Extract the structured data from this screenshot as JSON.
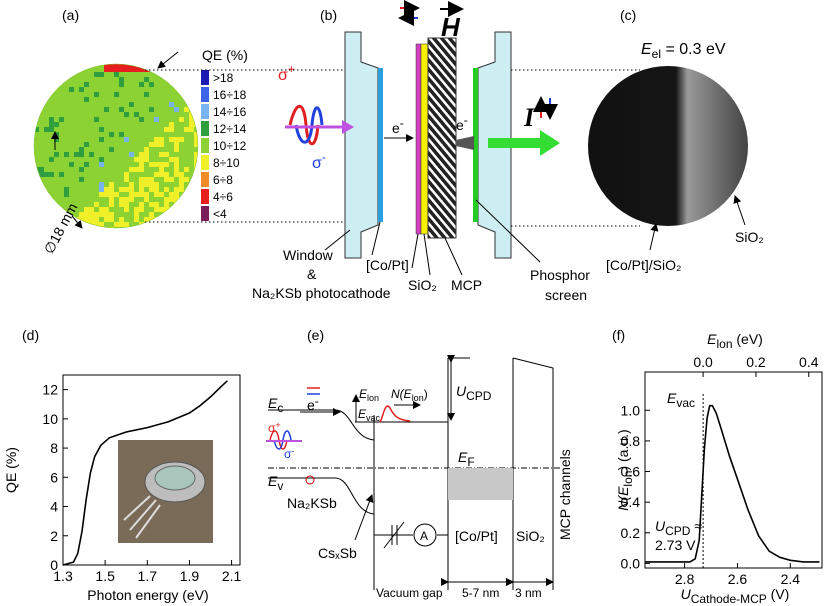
{
  "labels": [
    "(a)",
    "(b)",
    "(c)",
    "(d)",
    "(e)",
    "(f)"
  ],
  "panel_a": {
    "legend_title": "QE (%)",
    "legend": [
      {
        "label": ">18",
        "color": "#1c1cb4"
      },
      {
        "label": "16÷18",
        "color": "#3c64e6"
      },
      {
        "label": "14÷16",
        "color": "#78b4f0"
      },
      {
        "label": "12÷14",
        "color": "#2e9e3e"
      },
      {
        "label": "10÷12",
        "color": "#8cd232"
      },
      {
        "label": "8÷10",
        "color": "#f0f028"
      },
      {
        "label": "6÷8",
        "color": "#f08c28"
      },
      {
        "label": "4÷6",
        "color": "#e61e1e"
      },
      {
        "label": "<4",
        "color": "#7a1e5a"
      }
    ],
    "diameter": "∅18 mm"
  },
  "panel_b": {
    "field": "H",
    "sigma": "σ",
    "plus": "+",
    "minus": "-",
    "electron": "e",
    "current": "I",
    "window": "Window",
    "amp": "&",
    "cathode": "Na₂KSb photocathode",
    "copt": "[Co/Pt]",
    "sio": "SiO₂",
    "mcp": "MCP",
    "phosphor": "Phosphor",
    "screen": "screen"
  },
  "panel_c": {
    "e": "E",
    "e_sub": "el",
    "e_val": " = 0.3 eV",
    "copt_sio": "[Co/Pt]/SiO₂",
    "sio": "SiO₂"
  },
  "panel_e": {
    "E": "E",
    "c": "c",
    "v": "v",
    "vac": "vac",
    "lon": "lon",
    "N": "N(",
    "close": ")",
    "U": "U",
    "cpd": "CPD",
    "F": "F",
    "na": "Na₂KSb",
    "cs": "CsₓSb",
    "gap": "Vacuum gap",
    "d1": "5-7 nm",
    "d2": "3 nm",
    "copt": "[Co/Pt]",
    "sio": "SiO₂",
    "mcp": "MCP channels",
    "amp": "A",
    "e": "e",
    "minus": "-",
    "plus": "+",
    "sigma": "σ"
  },
  "chart_data": [
    {
      "type": "line",
      "xlabel": "Photon energy (eV)",
      "ylabel": "QE (%)",
      "color": "#000000",
      "x": [
        1.3,
        1.35,
        1.37,
        1.39,
        1.41,
        1.43,
        1.45,
        1.48,
        1.52,
        1.6,
        1.7,
        1.8,
        1.9,
        1.95,
        2.0,
        2.05,
        2.08
      ],
      "values": [
        0,
        0.2,
        0.8,
        2.3,
        4.5,
        6.3,
        7.4,
        8.2,
        8.7,
        9.1,
        9.4,
        9.8,
        10.4,
        10.9,
        11.5,
        12.2,
        12.6
      ],
      "xlim": [
        1.3,
        2.14
      ],
      "xticks": [
        1.3,
        1.5,
        1.7,
        1.9,
        2.1
      ],
      "ylim": [
        0,
        13
      ],
      "yticks": [
        0,
        2,
        4,
        6,
        8,
        10,
        12
      ]
    },
    {
      "type": "line",
      "xlabel": {
        "text": "U",
        "sub": "Cathode-MCP",
        "unit": " (V)"
      },
      "ylabel": {
        "text": "N(E",
        "sub": "lon",
        "unit": ") (a.u.)"
      },
      "x2label": {
        "text": "E",
        "sub": "lon",
        "unit": " (eV)"
      },
      "color": "#000000",
      "x": [
        2.95,
        2.85,
        2.78,
        2.76,
        2.745,
        2.735,
        2.725,
        2.715,
        2.705,
        2.695,
        2.68,
        2.66,
        2.63,
        2.6,
        2.56,
        2.52,
        2.48,
        2.44,
        2.4,
        2.35,
        2.29
      ],
      "values": [
        0.01,
        0.01,
        0.01,
        0.03,
        0.15,
        0.45,
        0.75,
        0.95,
        1.03,
        1.03,
        0.98,
        0.87,
        0.7,
        0.55,
        0.35,
        0.18,
        0.08,
        0.04,
        0.02,
        0.01,
        0.01
      ],
      "xlim": [
        2.95,
        2.28
      ],
      "xticks": [
        2.8,
        2.6,
        2.4
      ],
      "x2lim": [
        -0.22,
        0.45
      ],
      "x2ticks": [
        {
          "value": 0,
          "label": "0.0"
        },
        0.2,
        0.4
      ],
      "ylim": [
        -0.03,
        1.25
      ],
      "yticks": [
        {
          "value": 0,
          "label": "0.0"
        },
        0.2,
        0.4,
        0.6,
        0.8,
        {
          "value": 1,
          "label": "1.0"
        }
      ],
      "vline": 2.73,
      "annotations": {
        "evac": "E",
        "evac_sub": "vac",
        "ucpd": "U",
        "ucpd_sub": "CPD",
        "ucpd_rest": " ≈",
        "ucpd_val": "2.73 V"
      }
    }
  ]
}
